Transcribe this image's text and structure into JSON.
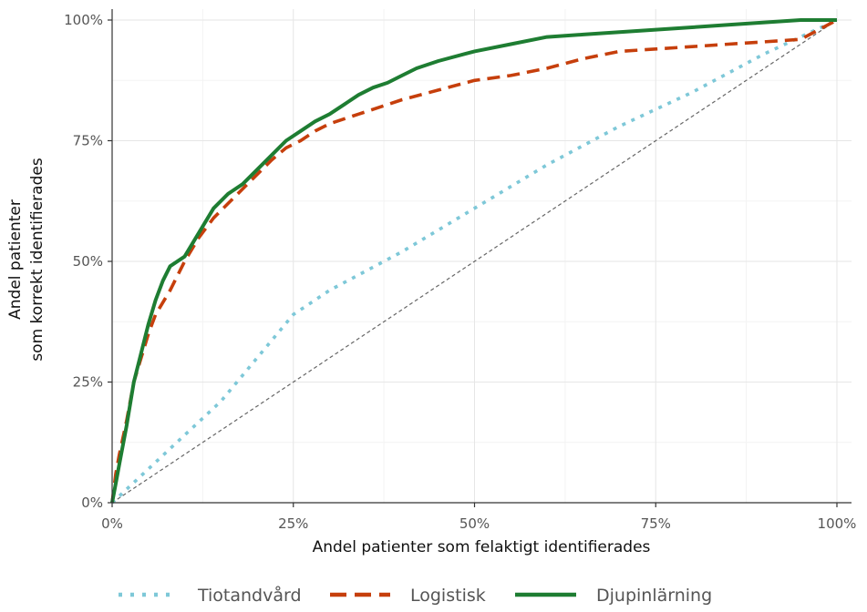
{
  "chart_data": {
    "type": "line",
    "title": "",
    "xlabel": "Andel patienter som felaktigt identifierades",
    "ylabel_line1": "Andel patienter",
    "ylabel_line2": "som korrekt identifierades",
    "xlim": [
      0,
      1
    ],
    "ylim": [
      0,
      1
    ],
    "x_ticks": [
      0,
      0.25,
      0.5,
      0.75,
      1
    ],
    "y_ticks": [
      0,
      0.25,
      0.5,
      0.75,
      1
    ],
    "x_tick_labels": [
      "0%",
      "25%",
      "50%",
      "75%",
      "100%"
    ],
    "y_tick_labels": [
      "0%",
      "25%",
      "50%",
      "75%",
      "100%"
    ],
    "grid": true,
    "legend_position": "bottom",
    "reference_line": {
      "x": [
        0,
        1
      ],
      "y": [
        0,
        1
      ],
      "color": "#666666",
      "style": "dashed"
    },
    "series": [
      {
        "name": "Tiotandvård",
        "color": "#7ec8d8",
        "style": "dotted",
        "x": [
          0,
          0.05,
          0.1,
          0.15,
          0.2,
          0.25,
          0.3,
          0.35,
          0.4,
          0.5,
          0.6,
          0.7,
          0.8,
          0.9,
          1.0
        ],
        "y": [
          0,
          0.07,
          0.14,
          0.21,
          0.3,
          0.39,
          0.44,
          0.48,
          0.52,
          0.61,
          0.7,
          0.78,
          0.85,
          0.93,
          1.0
        ]
      },
      {
        "name": "Logistisk",
        "color": "#c63f0c",
        "style": "dashed",
        "x": [
          0,
          0.005,
          0.01,
          0.02,
          0.03,
          0.04,
          0.05,
          0.06,
          0.08,
          0.1,
          0.12,
          0.14,
          0.16,
          0.18,
          0.2,
          0.22,
          0.24,
          0.26,
          0.28,
          0.3,
          0.32,
          0.34,
          0.36,
          0.38,
          0.4,
          0.45,
          0.5,
          0.55,
          0.6,
          0.65,
          0.7,
          0.75,
          0.8,
          0.85,
          0.9,
          0.95,
          1.0
        ],
        "y": [
          0,
          0.06,
          0.1,
          0.17,
          0.25,
          0.3,
          0.35,
          0.39,
          0.44,
          0.5,
          0.55,
          0.59,
          0.62,
          0.65,
          0.68,
          0.71,
          0.735,
          0.75,
          0.77,
          0.785,
          0.795,
          0.805,
          0.815,
          0.825,
          0.835,
          0.855,
          0.875,
          0.885,
          0.9,
          0.92,
          0.935,
          0.94,
          0.945,
          0.95,
          0.955,
          0.96,
          1.0
        ]
      },
      {
        "name": "Djupinlärning",
        "color": "#1e7d32",
        "style": "solid",
        "x": [
          0,
          0.005,
          0.01,
          0.02,
          0.03,
          0.04,
          0.05,
          0.06,
          0.07,
          0.08,
          0.1,
          0.12,
          0.14,
          0.16,
          0.18,
          0.2,
          0.22,
          0.24,
          0.26,
          0.28,
          0.3,
          0.32,
          0.34,
          0.36,
          0.38,
          0.4,
          0.42,
          0.45,
          0.5,
          0.55,
          0.6,
          0.65,
          0.7,
          0.75,
          0.8,
          0.85,
          0.9,
          0.95,
          1.0
        ],
        "y": [
          0,
          0.04,
          0.08,
          0.16,
          0.25,
          0.31,
          0.37,
          0.42,
          0.46,
          0.49,
          0.51,
          0.56,
          0.61,
          0.64,
          0.66,
          0.69,
          0.72,
          0.75,
          0.77,
          0.79,
          0.805,
          0.825,
          0.845,
          0.86,
          0.87,
          0.885,
          0.9,
          0.915,
          0.935,
          0.95,
          0.965,
          0.97,
          0.975,
          0.98,
          0.985,
          0.99,
          0.995,
          1.0,
          1.0
        ]
      }
    ]
  }
}
